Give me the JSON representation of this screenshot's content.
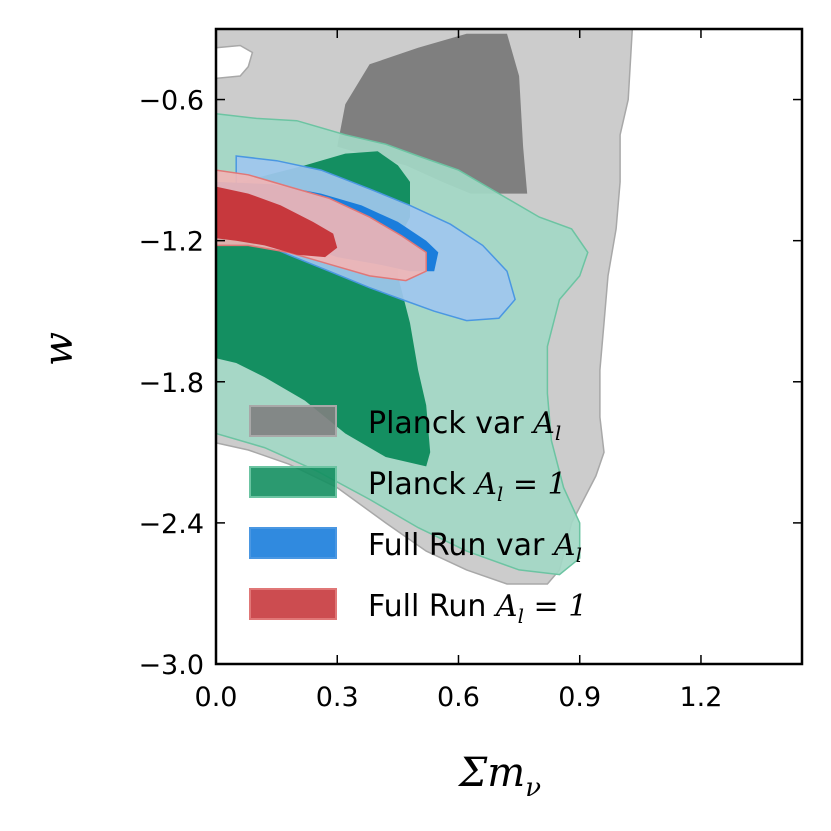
{
  "chart_data": {
    "type": "contour",
    "xlabel": "Σm",
    "xlabel_sub": "ν",
    "ylabel": "w",
    "xlim": [
      0.0,
      1.45
    ],
    "ylim": [
      -3.0,
      -0.3
    ],
    "xticks": [
      "0.0",
      "0.3",
      "0.6",
      "0.9",
      "1.2"
    ],
    "yticks": [
      "−0.6",
      "−1.2",
      "−1.8",
      "−2.4",
      "−3.0"
    ],
    "legend_position": "lower-center",
    "series": [
      {
        "name": "Planck var",
        "name_math": "A",
        "name_sub": "l",
        "name_suffix": "",
        "color_inner": "#7f7f7f",
        "color_outer": "#c8c8c8",
        "edge": "#a8a8a8",
        "contour_68": [
          [
            0.3,
            -0.8
          ],
          [
            0.32,
            -0.62
          ],
          [
            0.38,
            -0.45
          ],
          [
            0.5,
            -0.38
          ],
          [
            0.62,
            -0.32
          ],
          [
            0.72,
            -0.32
          ],
          [
            0.75,
            -0.5
          ],
          [
            0.76,
            -0.8
          ],
          [
            0.77,
            -1.0
          ],
          [
            0.63,
            -1.0
          ],
          [
            0.56,
            -0.95
          ],
          [
            0.47,
            -0.88
          ],
          [
            0.38,
            -0.84
          ]
        ],
        "contour_95": [
          [
            0.0,
            -0.3
          ],
          [
            1.03,
            -0.3
          ],
          [
            1.02,
            -0.6
          ],
          [
            1.0,
            -0.75
          ],
          [
            1.0,
            -0.95
          ],
          [
            0.99,
            -1.15
          ],
          [
            0.97,
            -1.35
          ],
          [
            0.96,
            -1.55
          ],
          [
            0.95,
            -1.75
          ],
          [
            0.95,
            -1.95
          ],
          [
            0.96,
            -2.1
          ],
          [
            0.94,
            -2.2
          ],
          [
            0.88,
            -2.4
          ],
          [
            0.85,
            -2.6
          ],
          [
            0.82,
            -2.66
          ],
          [
            0.72,
            -2.66
          ],
          [
            0.62,
            -2.6
          ],
          [
            0.52,
            -2.52
          ],
          [
            0.42,
            -2.4
          ],
          [
            0.3,
            -2.25
          ],
          [
            0.18,
            -2.15
          ],
          [
            0.08,
            -2.09
          ],
          [
            0.0,
            -2.06
          ]
        ],
        "hole_95": [
          [
            0.0,
            -0.38
          ],
          [
            0.06,
            -0.37
          ],
          [
            0.09,
            -0.4
          ],
          [
            0.08,
            -0.46
          ],
          [
            0.06,
            -0.5
          ],
          [
            0.0,
            -0.51
          ]
        ]
      },
      {
        "name": "Planck",
        "name_math": "A",
        "name_sub": "l",
        "name_suffix": " = 1",
        "color_inner": "#148f61",
        "color_outer": "#a3d8c5",
        "edge": "#6cc4a2",
        "contour_68": [
          [
            0.0,
            -0.98
          ],
          [
            0.13,
            -0.92
          ],
          [
            0.22,
            -0.88
          ],
          [
            0.32,
            -0.83
          ],
          [
            0.4,
            -0.82
          ],
          [
            0.45,
            -0.88
          ],
          [
            0.48,
            -0.95
          ],
          [
            0.48,
            -1.1
          ],
          [
            0.45,
            -1.2
          ],
          [
            0.45,
            -1.35
          ],
          [
            0.48,
            -1.55
          ],
          [
            0.5,
            -1.75
          ],
          [
            0.52,
            -1.9
          ],
          [
            0.53,
            -2.1
          ],
          [
            0.52,
            -2.16
          ],
          [
            0.42,
            -2.12
          ],
          [
            0.32,
            -2.02
          ],
          [
            0.22,
            -1.88
          ],
          [
            0.12,
            -1.78
          ],
          [
            0.05,
            -1.72
          ],
          [
            0.0,
            -1.7
          ]
        ],
        "contour_95": [
          [
            0.0,
            -0.66
          ],
          [
            0.1,
            -0.68
          ],
          [
            0.2,
            -0.69
          ],
          [
            0.32,
            -0.75
          ],
          [
            0.42,
            -0.79
          ],
          [
            0.5,
            -0.84
          ],
          [
            0.6,
            -0.9
          ],
          [
            0.7,
            -1.0
          ],
          [
            0.8,
            -1.1
          ],
          [
            0.88,
            -1.15
          ],
          [
            0.92,
            -1.25
          ],
          [
            0.9,
            -1.35
          ],
          [
            0.85,
            -1.45
          ],
          [
            0.82,
            -1.65
          ],
          [
            0.82,
            -1.85
          ],
          [
            0.83,
            -2.05
          ],
          [
            0.86,
            -2.25
          ],
          [
            0.9,
            -2.4
          ],
          [
            0.9,
            -2.55
          ],
          [
            0.85,
            -2.62
          ],
          [
            0.75,
            -2.6
          ],
          [
            0.62,
            -2.52
          ],
          [
            0.5,
            -2.42
          ],
          [
            0.38,
            -2.3
          ],
          [
            0.25,
            -2.18
          ],
          [
            0.12,
            -2.08
          ],
          [
            0.0,
            -2.02
          ]
        ]
      },
      {
        "name": "Full Run var",
        "name_math": "A",
        "name_sub": "l",
        "name_suffix": "",
        "color_inner": "#1a7ddc",
        "color_outer": "#9fc7ee",
        "edge": "#4a97e2",
        "contour_68": [
          [
            0.0,
            -0.95
          ],
          [
            0.14,
            -0.96
          ],
          [
            0.26,
            -1.0
          ],
          [
            0.36,
            -1.05
          ],
          [
            0.45,
            -1.12
          ],
          [
            0.52,
            -1.2
          ],
          [
            0.55,
            -1.25
          ],
          [
            0.54,
            -1.33
          ],
          [
            0.48,
            -1.33
          ],
          [
            0.4,
            -1.3
          ],
          [
            0.3,
            -1.27
          ],
          [
            0.18,
            -1.2
          ],
          [
            0.08,
            -1.14
          ],
          [
            0.0,
            -1.12
          ]
        ],
        "contour_95": [
          [
            0.05,
            -0.84
          ],
          [
            0.15,
            -0.86
          ],
          [
            0.26,
            -0.9
          ],
          [
            0.38,
            -0.98
          ],
          [
            0.48,
            -1.05
          ],
          [
            0.58,
            -1.13
          ],
          [
            0.66,
            -1.22
          ],
          [
            0.72,
            -1.33
          ],
          [
            0.74,
            -1.45
          ],
          [
            0.7,
            -1.53
          ],
          [
            0.62,
            -1.54
          ],
          [
            0.54,
            -1.5
          ],
          [
            0.46,
            -1.45
          ],
          [
            0.38,
            -1.4
          ],
          [
            0.28,
            -1.33
          ],
          [
            0.18,
            -1.26
          ],
          [
            0.1,
            -1.2
          ],
          [
            0.05,
            -1.15
          ]
        ]
      },
      {
        "name": "Full Run",
        "name_math": "A",
        "name_sub": "l",
        "name_suffix": " = 1",
        "color_inner": "#c7383d",
        "color_outer": "#f0b5b5",
        "edge": "#e07777",
        "contour_68": [
          [
            0.0,
            -0.97
          ],
          [
            0.08,
            -1.0
          ],
          [
            0.16,
            -1.05
          ],
          [
            0.24,
            -1.12
          ],
          [
            0.29,
            -1.17
          ],
          [
            0.3,
            -1.23
          ],
          [
            0.27,
            -1.27
          ],
          [
            0.2,
            -1.26
          ],
          [
            0.12,
            -1.22
          ],
          [
            0.05,
            -1.2
          ],
          [
            0.0,
            -1.19
          ]
        ],
        "contour_95": [
          [
            0.0,
            -0.9
          ],
          [
            0.08,
            -0.92
          ],
          [
            0.18,
            -0.97
          ],
          [
            0.28,
            -1.02
          ],
          [
            0.38,
            -1.1
          ],
          [
            0.46,
            -1.18
          ],
          [
            0.52,
            -1.25
          ],
          [
            0.52,
            -1.33
          ],
          [
            0.47,
            -1.37
          ],
          [
            0.38,
            -1.35
          ],
          [
            0.28,
            -1.3
          ],
          [
            0.18,
            -1.25
          ],
          [
            0.08,
            -1.22
          ],
          [
            0.0,
            -1.22
          ]
        ]
      }
    ]
  }
}
